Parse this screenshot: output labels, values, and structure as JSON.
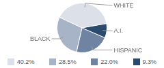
{
  "chart_data": {
    "type": "pie",
    "categories": [
      "WHITE",
      "BLACK",
      "HISPANIC",
      "A.I."
    ],
    "values": [
      40.2,
      28.5,
      22.0,
      9.3
    ],
    "value_labels": [
      "40.2%",
      "28.5%",
      "22.0%",
      "9.3%"
    ],
    "colors": [
      "#dce1e9",
      "#a7b3c6",
      "#6f83a3",
      "#2c4a6e"
    ],
    "legend": "bottom"
  }
}
